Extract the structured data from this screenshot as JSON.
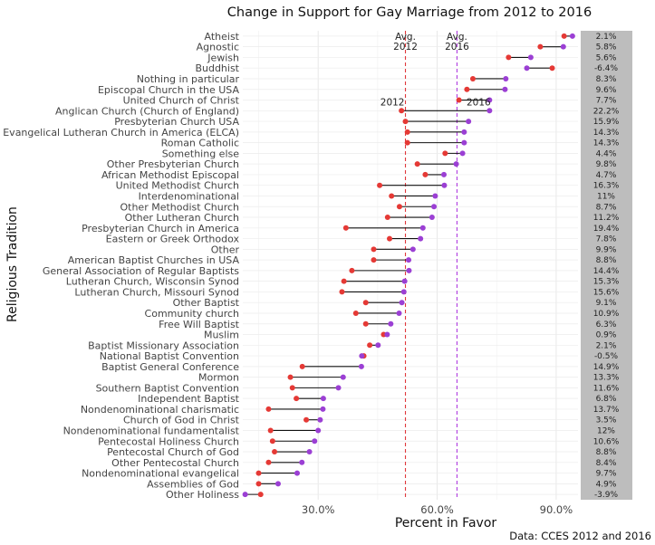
{
  "chart_data": {
    "type": "dumbbell",
    "title": "Change in Support for Gay Marriage from 2012 to 2016",
    "xlabel": "Percent in Favor",
    "ylabel": "Religious Tradition",
    "caption": "Data: CCES 2012 and 2016",
    "xlim": [
      0.11,
      0.955
    ],
    "xticks": [
      {
        "value": 0.3,
        "label": "30.0%"
      },
      {
        "value": 0.6,
        "label": "60.0%"
      },
      {
        "value": 0.9,
        "label": "90.0%"
      }
    ],
    "avg_lines": [
      {
        "label": "Avg.\n2012",
        "value": 0.52,
        "color": "#e0383c"
      },
      {
        "label": "Avg.\n2016",
        "value": 0.65,
        "color": "#b03de0"
      }
    ],
    "point_labels": {
      "y2012": "2012",
      "y2016": "2016"
    },
    "colors": {
      "y2012": "#e53935",
      "y2016": "#9b3fd4",
      "segment": "#111111",
      "change_panel": "#bdbdbd"
    },
    "categories": [
      "Atheist",
      "Agnostic",
      "Jewish",
      "Buddhist",
      "Nothing in particular",
      "Episcopal Church in the USA",
      "United Church of Christ",
      "Anglican Church (Church of England)",
      "Presbyterian Church USA",
      "Evangelical Lutheran Church in America (ELCA)",
      "Roman Catholic",
      "Something else",
      "Other Presbyterian Church",
      "African Methodist Episcopal",
      "United Methodist Church",
      "Interdenominational",
      "Other Methodist Church",
      "Other Lutheran Church",
      "Presbyterian Church in America",
      "Eastern or Greek Orthodox",
      "Other",
      "American Baptist Churches in USA",
      "General Association of Regular Baptists",
      "Lutheran Church, Wisconsin Synod",
      "Lutheran Church, Missouri Synod",
      "Other Baptist",
      "Community church",
      "Free Will Baptist",
      "Muslim",
      "Baptist Missionary Association",
      "National Baptist Convention",
      "Baptist General Conference",
      "Mormon",
      "Southern Baptist Convention",
      "Independent Baptist",
      "Nondenominational charismatic",
      "Church of God in Christ",
      "Nondenominational fundamentalist",
      "Pentecostal Holiness Church",
      "Pentecostal Church of God",
      "Other Pentecostal Church",
      "Nondenominational evangelical",
      "Assemblies of God",
      "Other Holiness"
    ],
    "series": [
      {
        "name": "2012",
        "values": [
          0.92,
          0.86,
          0.78,
          0.89,
          0.69,
          0.675,
          0.655,
          0.51,
          0.52,
          0.525,
          0.525,
          0.62,
          0.55,
          0.57,
          0.455,
          0.485,
          0.505,
          0.475,
          0.37,
          0.48,
          0.44,
          0.44,
          0.385,
          0.365,
          0.36,
          0.42,
          0.395,
          0.42,
          0.465,
          0.43,
          0.415,
          0.26,
          0.23,
          0.235,
          0.245,
          0.175,
          0.27,
          0.18,
          0.185,
          0.19,
          0.175,
          0.15,
          0.15,
          0.155
        ]
      },
      {
        "name": "2016",
        "values": [
          0.941,
          0.918,
          0.836,
          0.826,
          0.773,
          0.771,
          0.732,
          0.732,
          0.679,
          0.668,
          0.668,
          0.664,
          0.648,
          0.617,
          0.618,
          0.595,
          0.592,
          0.587,
          0.564,
          0.558,
          0.539,
          0.528,
          0.529,
          0.518,
          0.516,
          0.511,
          0.504,
          0.483,
          0.474,
          0.451,
          0.41,
          0.409,
          0.363,
          0.351,
          0.313,
          0.312,
          0.305,
          0.3,
          0.291,
          0.278,
          0.259,
          0.247,
          0.199,
          0.116
        ]
      }
    ],
    "change_labels": [
      "2.1%",
      "5.8%",
      "5.6%",
      "-6.4%",
      "8.3%",
      "9.6%",
      "7.7%",
      "22.2%",
      "15.9%",
      "14.3%",
      "14.3%",
      "4.4%",
      "9.8%",
      "4.7%",
      "16.3%",
      "11%",
      "8.7%",
      "11.2%",
      "19.4%",
      "7.8%",
      "9.9%",
      "8.8%",
      "14.4%",
      "15.3%",
      "15.6%",
      "9.1%",
      "10.9%",
      "6.3%",
      "0.9%",
      "2.1%",
      "-0.5%",
      "14.9%",
      "13.3%",
      "11.6%",
      "6.8%",
      "13.7%",
      "3.5%",
      "12%",
      "10.6%",
      "8.8%",
      "8.4%",
      "9.7%",
      "4.9%",
      "-3.9%"
    ]
  }
}
